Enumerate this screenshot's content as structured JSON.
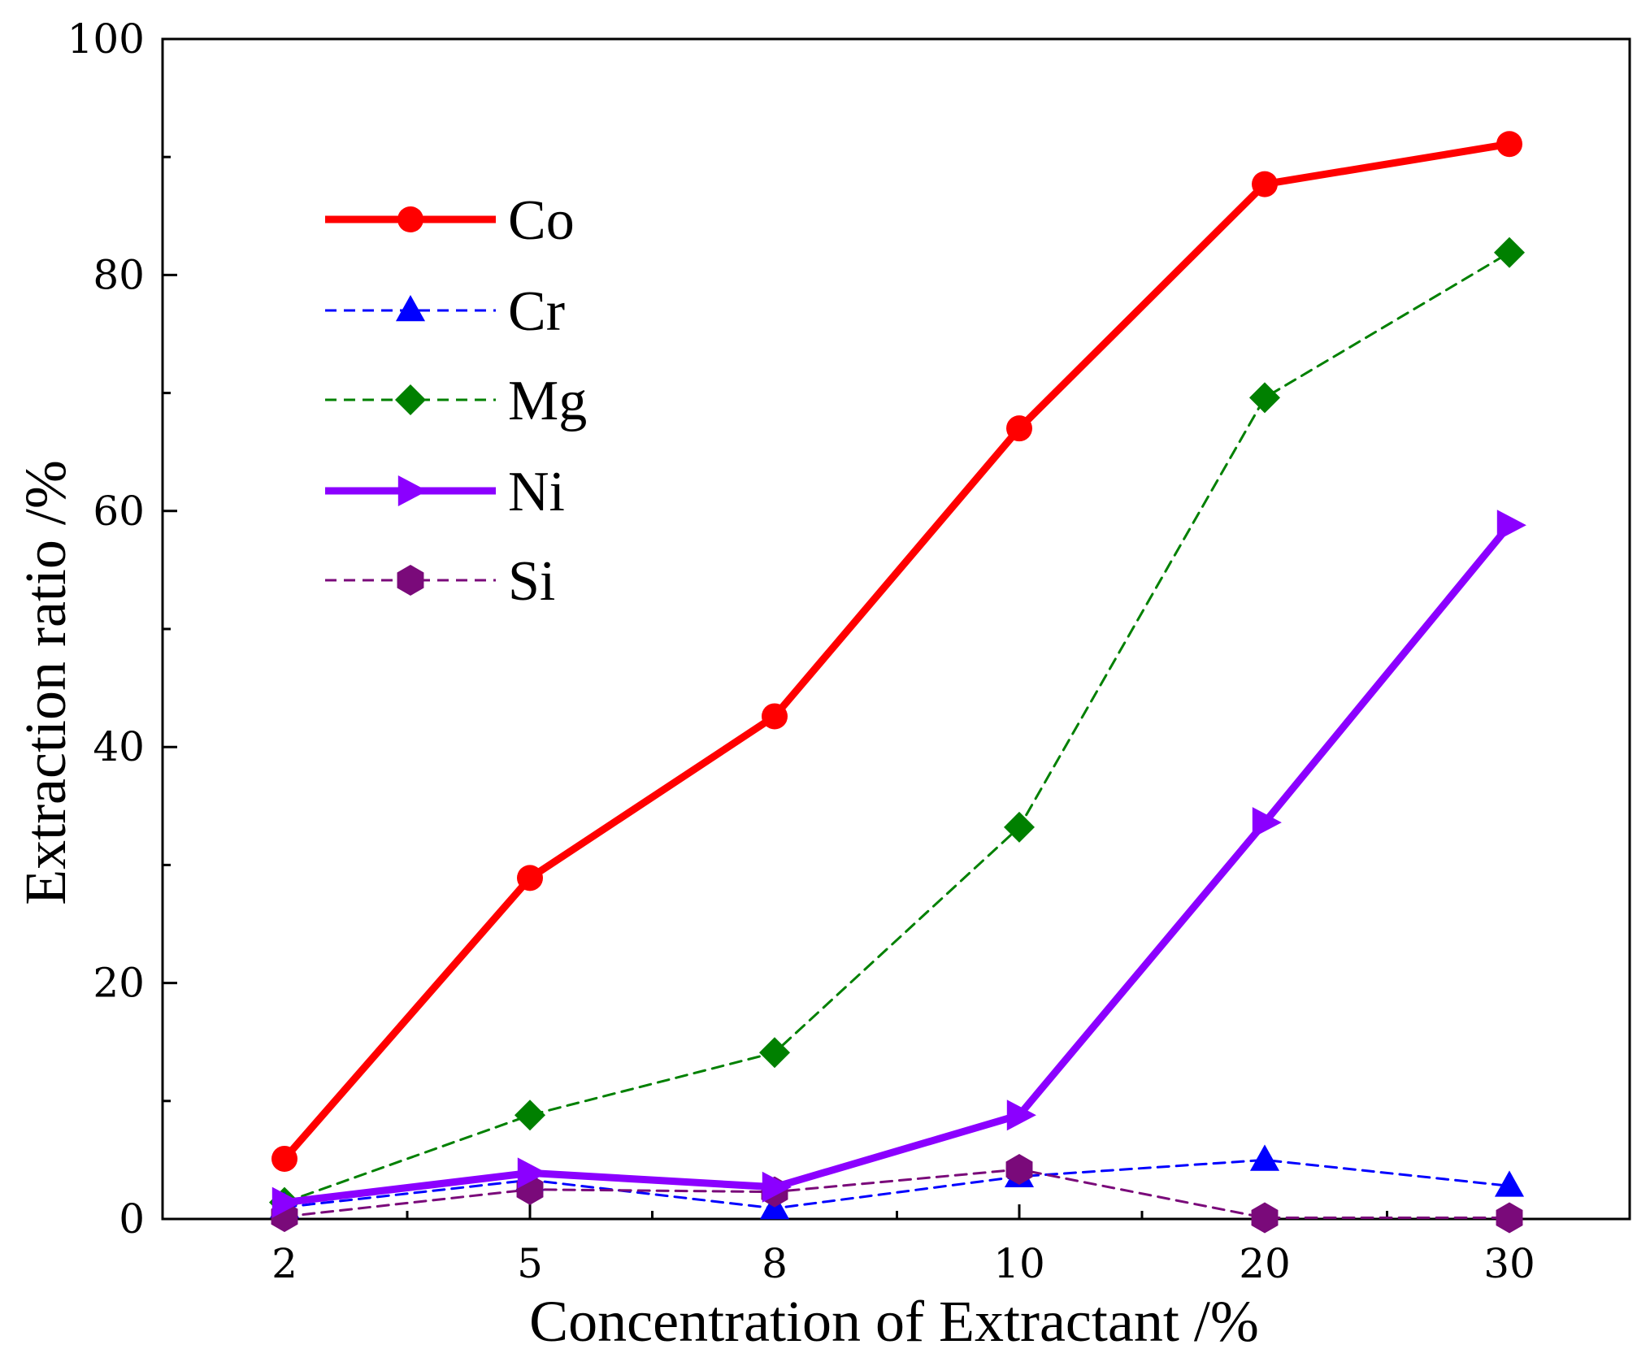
{
  "chart_data": {
    "type": "line",
    "title": "",
    "xlabel": "Concentration of Extractant /%",
    "ylabel": "Extraction ratio /%",
    "categories": [
      "2",
      "5",
      "8",
      "10",
      "20",
      "30"
    ],
    "ylim": [
      0,
      100
    ],
    "yticks": [
      0,
      20,
      40,
      60,
      80,
      100
    ],
    "legend_position": "top-left",
    "grid": false,
    "series": [
      {
        "name": "Co",
        "values": [
          5.1,
          28.9,
          42.6,
          67.0,
          87.7,
          91.1
        ],
        "color": "#ff0000",
        "line": "solid",
        "marker": "circle",
        "thick": true
      },
      {
        "name": "Cr",
        "values": [
          1.0,
          3.3,
          0.9,
          3.6,
          5.0,
          2.8
        ],
        "color": "#0000ff",
        "line": "dashed",
        "marker": "triangle",
        "thick": false
      },
      {
        "name": "Mg",
        "values": [
          1.4,
          8.8,
          14.1,
          33.2,
          69.6,
          81.9
        ],
        "color": "#008000",
        "line": "dashed",
        "marker": "diamond",
        "thick": false
      },
      {
        "name": "Ni",
        "values": [
          1.4,
          3.9,
          2.7,
          8.8,
          33.6,
          58.8
        ],
        "color": "#8b00ff",
        "line": "solid",
        "marker": "triangle-right",
        "thick": true
      },
      {
        "name": "Si",
        "values": [
          0.2,
          2.5,
          2.3,
          4.2,
          0.1,
          0.1
        ],
        "color": "#7a0a7a",
        "line": "dashed",
        "marker": "hexagon",
        "thick": false
      }
    ]
  }
}
